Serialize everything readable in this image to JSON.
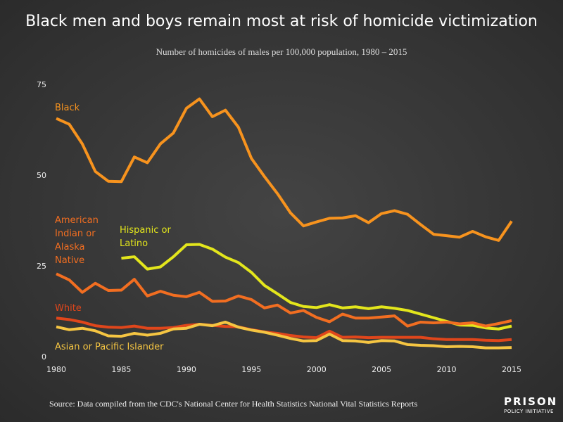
{
  "chart_data": {
    "type": "line",
    "title": "Black men and boys remain most at risk of homicide victimization",
    "subtitle": "Number of homicides of males per 100,000 population, 1980 – 2015",
    "source": "Source: Data compiled from the CDC's National Center for Health Statistics National Vital Statistics Reports",
    "logo": {
      "top": "PRISON",
      "bottom": "POLICY INITIATIVE"
    },
    "x": [
      1980,
      1981,
      1982,
      1983,
      1984,
      1985,
      1986,
      1987,
      1988,
      1989,
      1990,
      1991,
      1992,
      1993,
      1994,
      1995,
      1996,
      1997,
      1998,
      1999,
      2000,
      2001,
      2002,
      2003,
      2004,
      2005,
      2006,
      2007,
      2008,
      2009,
      2010,
      2011,
      2012,
      2013,
      2014,
      2015
    ],
    "xlim": [
      1980,
      2015
    ],
    "xticks": [
      1980,
      1985,
      1990,
      1995,
      2000,
      2005,
      2010,
      2015
    ],
    "ylim": [
      0,
      75
    ],
    "yticks": [
      0,
      25,
      50,
      75
    ],
    "grid": false,
    "series": [
      {
        "name": "Black",
        "color": "#f7931e",
        "values": [
          65.8,
          64.2,
          58.8,
          51.2,
          48.5,
          48.4,
          55.2,
          53.6,
          58.8,
          61.8,
          68.6,
          71.2,
          66.3,
          68.1,
          63.4,
          54.8,
          49.8,
          45.1,
          39.8,
          36.2,
          37.3,
          38.3,
          38.4,
          39.0,
          37.1,
          39.6,
          40.4,
          39.4,
          36.6,
          33.9,
          33.5,
          33.1,
          34.7,
          33.2,
          32.2,
          37.5
        ]
      },
      {
        "name": "Hispanic or Latino",
        "color": "#e3e61c",
        "values": [
          null,
          null,
          null,
          null,
          null,
          27.3,
          27.7,
          24.3,
          24.9,
          27.7,
          31.0,
          31.1,
          29.8,
          27.6,
          26.1,
          23.4,
          19.8,
          17.5,
          15.1,
          14.0,
          13.7,
          14.5,
          13.6,
          13.9,
          13.4,
          13.9,
          13.5,
          12.9,
          11.9,
          10.9,
          9.9,
          8.9,
          8.8,
          8.1,
          7.8,
          8.6
        ]
      },
      {
        "name": "American Indian or Alaska Native",
        "color": "#f26e21",
        "values": [
          23.0,
          21.3,
          17.9,
          20.4,
          18.4,
          18.5,
          21.5,
          16.9,
          18.2,
          17.1,
          16.7,
          17.9,
          15.4,
          15.5,
          16.9,
          15.9,
          13.6,
          14.4,
          12.2,
          12.9,
          11.0,
          9.8,
          11.9,
          10.8,
          10.8,
          11.1,
          11.4,
          8.6,
          9.7,
          9.5,
          9.7,
          9.2,
          9.5,
          8.6,
          9.3,
          10.1
        ]
      },
      {
        "name": "White",
        "color": "#e0461b",
        "values": [
          10.8,
          10.4,
          9.7,
          8.7,
          8.3,
          8.2,
          8.6,
          8.0,
          8.0,
          8.2,
          8.8,
          9.1,
          8.8,
          8.5,
          8.4,
          7.6,
          7.0,
          6.6,
          6.0,
          5.6,
          5.4,
          7.2,
          5.5,
          5.6,
          5.4,
          5.5,
          5.5,
          5.5,
          5.5,
          5.1,
          4.9,
          4.9,
          4.9,
          4.7,
          4.6,
          4.9
        ]
      },
      {
        "name": "Asian or Pacific Islander",
        "color": "#f5c542",
        "values": [
          8.4,
          7.6,
          8.0,
          7.3,
          5.9,
          5.8,
          6.6,
          6.1,
          6.6,
          7.8,
          8.0,
          9.1,
          8.7,
          9.7,
          8.3,
          7.5,
          6.9,
          6.1,
          5.2,
          4.5,
          4.6,
          6.4,
          4.6,
          4.5,
          4.1,
          4.6,
          4.5,
          3.5,
          3.3,
          3.2,
          2.9,
          3.0,
          2.9,
          2.6,
          2.6,
          2.7
        ]
      }
    ]
  }
}
